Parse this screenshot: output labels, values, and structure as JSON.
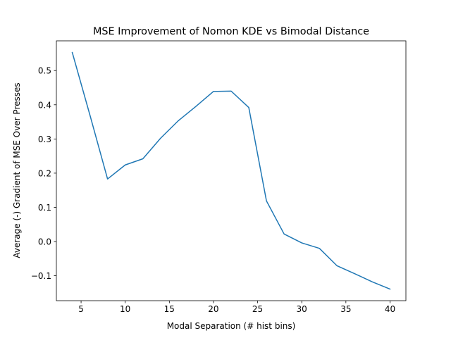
{
  "chart_data": {
    "type": "line",
    "title": "MSE Improvement of Nomon KDE vs Bimodal Distance",
    "xlabel": "Modal Separation (# hist bins)",
    "ylabel": "Average (-) Gradient of MSE Over Presses",
    "xlim": [
      2.2,
      41.8
    ],
    "ylim": [
      -0.173,
      0.587
    ],
    "xticks": [
      5,
      10,
      15,
      20,
      25,
      30,
      35,
      40
    ],
    "xtick_labels": [
      "5",
      "10",
      "15",
      "20",
      "25",
      "30",
      "35",
      "40"
    ],
    "yticks": [
      -0.1,
      0.0,
      0.1,
      0.2,
      0.3,
      0.4,
      0.5
    ],
    "ytick_labels": [
      "−0.1",
      "0.0",
      "0.1",
      "0.2",
      "0.3",
      "0.4",
      "0.5"
    ],
    "grid": false,
    "series": [
      {
        "color": "#1f77b4",
        "x": [
          4,
          6,
          8,
          10,
          12,
          14,
          16,
          18,
          20,
          22,
          24,
          26,
          28,
          30,
          32,
          34,
          36,
          38,
          40
        ],
        "y": [
          0.553,
          0.37,
          0.183,
          0.224,
          0.242,
          0.302,
          0.353,
          0.395,
          0.439,
          0.44,
          0.392,
          0.119,
          0.022,
          -0.004,
          -0.02,
          -0.071,
          -0.094,
          -0.118,
          -0.139
        ]
      }
    ]
  }
}
